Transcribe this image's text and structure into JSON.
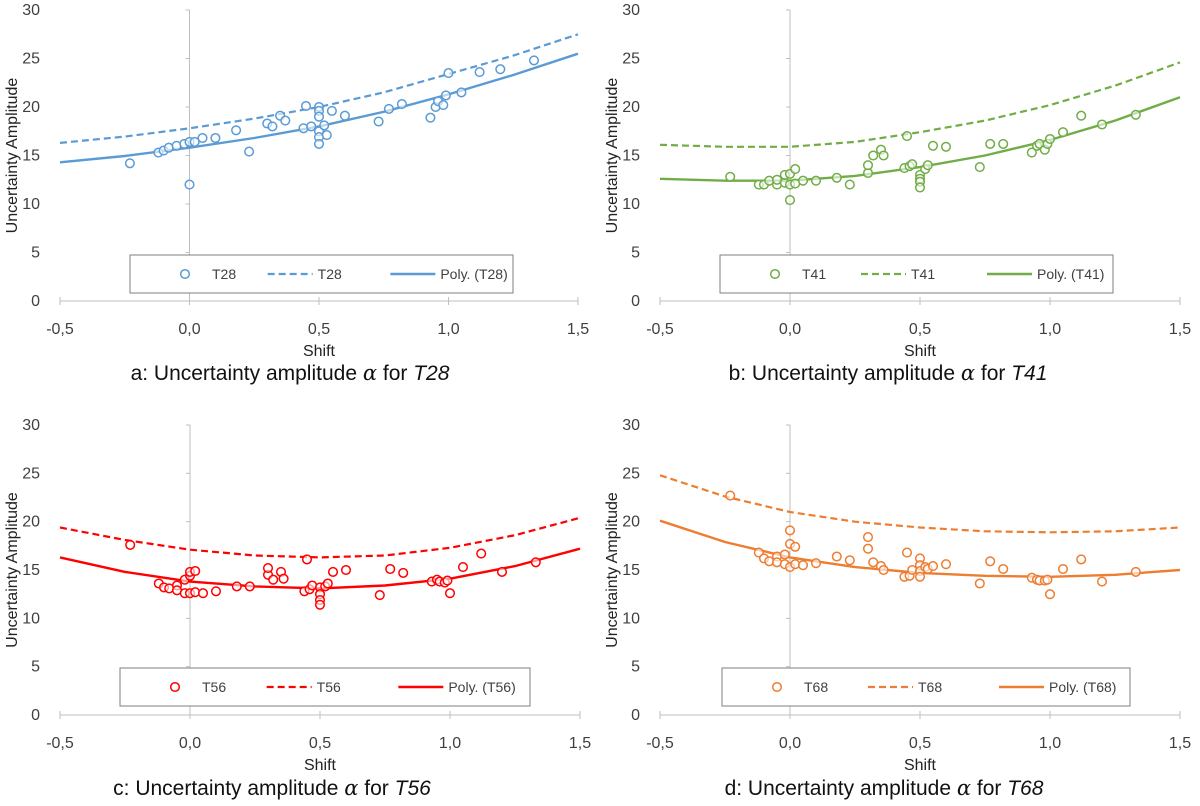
{
  "figure": {
    "colors": {
      "text": "#404040",
      "axis": "#bfbfbf",
      "legend_border": "#7f7f7f"
    }
  },
  "chart_data": [
    {
      "type": "scatter",
      "id": "a",
      "series_name": "T28",
      "color": "#5b9bd5",
      "xlabel": "Shift",
      "ylabel": "Uncertainty Amplitude",
      "xlim": [
        -0.5,
        1.5
      ],
      "ylim": [
        0,
        30
      ],
      "xticks": [
        "-0,5",
        "0,0",
        "0,5",
        "1,0",
        "1,5"
      ],
      "yticks": [
        "0",
        "5",
        "10",
        "15",
        "20",
        "25",
        "30"
      ],
      "caption": {
        "prefix": "a: Uncertainty amplitude ",
        "symbol": "α",
        "mid": " for ",
        "name": "T28"
      },
      "legend": [
        "T28",
        "T28",
        "Poly. (T28)"
      ],
      "points": [
        [
          -0.23,
          14.2
        ],
        [
          -0.12,
          15.3
        ],
        [
          -0.1,
          15.5
        ],
        [
          -0.08,
          15.8
        ],
        [
          -0.05,
          16.0
        ],
        [
          -0.02,
          16.2
        ],
        [
          0.0,
          16.4
        ],
        [
          0.0,
          12.0
        ],
        [
          0.02,
          16.4
        ],
        [
          0.05,
          16.8
        ],
        [
          0.1,
          16.8
        ],
        [
          0.18,
          17.6
        ],
        [
          0.23,
          15.4
        ],
        [
          0.3,
          18.3
        ],
        [
          0.32,
          18.0
        ],
        [
          0.35,
          19.1
        ],
        [
          0.37,
          18.6
        ],
        [
          0.44,
          17.8
        ],
        [
          0.45,
          20.1
        ],
        [
          0.47,
          18.0
        ],
        [
          0.5,
          20.0
        ],
        [
          0.5,
          19.6
        ],
        [
          0.5,
          19.0
        ],
        [
          0.5,
          17.5
        ],
        [
          0.5,
          16.9
        ],
        [
          0.5,
          16.2
        ],
        [
          0.52,
          18.1
        ],
        [
          0.53,
          17.1
        ],
        [
          0.55,
          19.6
        ],
        [
          0.6,
          19.1
        ],
        [
          0.73,
          18.5
        ],
        [
          0.77,
          19.8
        ],
        [
          0.82,
          20.3
        ],
        [
          0.93,
          18.9
        ],
        [
          0.95,
          20.0
        ],
        [
          0.96,
          20.6
        ],
        [
          0.98,
          20.2
        ],
        [
          0.99,
          21.2
        ],
        [
          1.0,
          23.5
        ],
        [
          1.05,
          21.5
        ],
        [
          1.12,
          23.6
        ],
        [
          1.2,
          23.9
        ],
        [
          1.33,
          24.8
        ]
      ],
      "dashed_curve": {
        "x": [
          -0.5,
          -0.25,
          0.0,
          0.25,
          0.5,
          0.75,
          1.0,
          1.25,
          1.5
        ],
        "y": [
          16.3,
          16.95,
          17.8,
          18.8,
          20.0,
          21.5,
          23.4,
          25.3,
          27.5
        ]
      },
      "poly_curve": {
        "x": [
          -0.5,
          -0.25,
          0.0,
          0.25,
          0.5,
          0.75,
          1.0,
          1.25,
          1.5
        ],
        "y": [
          14.3,
          14.95,
          15.8,
          16.8,
          18.0,
          19.5,
          21.3,
          23.3,
          25.5
        ]
      }
    },
    {
      "type": "scatter",
      "id": "b",
      "series_name": "T41",
      "color": "#70ad47",
      "xlabel": "Shift",
      "ylabel": "Uncertainty Amplitude",
      "xlim": [
        -0.5,
        1.5
      ],
      "ylim": [
        0,
        30
      ],
      "xticks": [
        "-0,5",
        "0,0",
        "0,5",
        "1,0",
        "1,5"
      ],
      "yticks": [
        "0",
        "5",
        "10",
        "15",
        "20",
        "25",
        "30"
      ],
      "caption": {
        "prefix": "b: Uncertainty amplitude ",
        "symbol": "α",
        "mid": " for ",
        "name": "T41"
      },
      "legend": [
        "T41",
        "T41",
        "Poly. (T41)"
      ],
      "points": [
        [
          -0.23,
          12.8
        ],
        [
          -0.12,
          12.0
        ],
        [
          -0.1,
          12.0
        ],
        [
          -0.08,
          12.4
        ],
        [
          -0.05,
          12.0
        ],
        [
          -0.05,
          12.5
        ],
        [
          -0.02,
          12.2
        ],
        [
          -0.02,
          13.0
        ],
        [
          0.0,
          12.0
        ],
        [
          0.0,
          10.4
        ],
        [
          0.0,
          13.1
        ],
        [
          0.02,
          12.1
        ],
        [
          0.02,
          13.6
        ],
        [
          0.05,
          12.4
        ],
        [
          0.1,
          12.4
        ],
        [
          0.18,
          12.7
        ],
        [
          0.23,
          12.0
        ],
        [
          0.3,
          13.2
        ],
        [
          0.3,
          14.0
        ],
        [
          0.32,
          15.0
        ],
        [
          0.35,
          15.6
        ],
        [
          0.36,
          15.0
        ],
        [
          0.44,
          13.7
        ],
        [
          0.45,
          17.0
        ],
        [
          0.46,
          13.9
        ],
        [
          0.47,
          14.1
        ],
        [
          0.5,
          13.0
        ],
        [
          0.5,
          12.6
        ],
        [
          0.5,
          12.3
        ],
        [
          0.5,
          11.7
        ],
        [
          0.52,
          13.6
        ],
        [
          0.53,
          14.0
        ],
        [
          0.55,
          16.0
        ],
        [
          0.6,
          15.9
        ],
        [
          0.73,
          13.8
        ],
        [
          0.77,
          16.2
        ],
        [
          0.82,
          16.2
        ],
        [
          0.93,
          15.3
        ],
        [
          0.95,
          16.0
        ],
        [
          0.96,
          16.2
        ],
        [
          0.98,
          15.6
        ],
        [
          0.99,
          16.2
        ],
        [
          1.0,
          16.7
        ],
        [
          1.05,
          17.4
        ],
        [
          1.12,
          19.1
        ],
        [
          1.2,
          18.2
        ],
        [
          1.33,
          19.2
        ]
      ],
      "dashed_curve": {
        "x": [
          -0.5,
          -0.25,
          0.0,
          0.25,
          0.5,
          0.75,
          1.0,
          1.25,
          1.5
        ],
        "y": [
          16.1,
          15.9,
          15.9,
          16.4,
          17.4,
          18.6,
          20.2,
          22.2,
          24.6
        ]
      },
      "poly_curve": {
        "x": [
          -0.5,
          -0.25,
          0.0,
          0.25,
          0.5,
          0.75,
          1.0,
          1.25,
          1.5
        ],
        "y": [
          12.6,
          12.4,
          12.4,
          12.9,
          13.8,
          15.0,
          16.6,
          18.6,
          21.0
        ]
      }
    },
    {
      "type": "scatter",
      "id": "c",
      "series_name": "T56",
      "color": "#ff0000",
      "xlabel": "Shift",
      "ylabel": "Uncertainty Amplitude",
      "xlim": [
        -0.5,
        1.5
      ],
      "ylim": [
        0,
        30
      ],
      "xticks": [
        "-0,5",
        "0,0",
        "0,5",
        "1,0",
        "1,5"
      ],
      "yticks": [
        "0",
        "5",
        "10",
        "15",
        "20",
        "25",
        "30"
      ],
      "caption": {
        "prefix": "c: Uncertainty amplitude ",
        "symbol": "α",
        "mid": " for ",
        "name": "T56"
      },
      "legend": [
        "T56",
        "T56",
        "Poly. (T56)"
      ],
      "points": [
        [
          -0.23,
          17.6
        ],
        [
          -0.12,
          13.6
        ],
        [
          -0.1,
          13.2
        ],
        [
          -0.08,
          13.1
        ],
        [
          -0.05,
          13.4
        ],
        [
          -0.05,
          12.9
        ],
        [
          -0.02,
          14.0
        ],
        [
          -0.02,
          12.6
        ],
        [
          0.0,
          14.4
        ],
        [
          0.0,
          12.6
        ],
        [
          0.0,
          14.8
        ],
        [
          0.02,
          12.7
        ],
        [
          0.02,
          14.9
        ],
        [
          0.05,
          12.6
        ],
        [
          0.1,
          12.8
        ],
        [
          0.18,
          13.3
        ],
        [
          0.23,
          13.3
        ],
        [
          0.3,
          14.5
        ],
        [
          0.3,
          15.2
        ],
        [
          0.32,
          14.0
        ],
        [
          0.35,
          14.8
        ],
        [
          0.36,
          14.1
        ],
        [
          0.44,
          12.8
        ],
        [
          0.45,
          16.1
        ],
        [
          0.46,
          13.0
        ],
        [
          0.47,
          13.4
        ],
        [
          0.5,
          13.2
        ],
        [
          0.5,
          12.5
        ],
        [
          0.5,
          11.9
        ],
        [
          0.5,
          11.4
        ],
        [
          0.52,
          13.3
        ],
        [
          0.53,
          13.6
        ],
        [
          0.55,
          14.8
        ],
        [
          0.6,
          15.0
        ],
        [
          0.73,
          12.4
        ],
        [
          0.77,
          15.1
        ],
        [
          0.82,
          14.7
        ],
        [
          0.93,
          13.8
        ],
        [
          0.95,
          14.0
        ],
        [
          0.96,
          13.8
        ],
        [
          0.98,
          13.7
        ],
        [
          0.99,
          13.9
        ],
        [
          1.0,
          12.6
        ],
        [
          1.05,
          15.3
        ],
        [
          1.12,
          16.7
        ],
        [
          1.2,
          14.8
        ],
        [
          1.33,
          15.8
        ]
      ],
      "dashed_curve": {
        "x": [
          -0.5,
          -0.25,
          0.0,
          0.25,
          0.5,
          0.75,
          1.0,
          1.25,
          1.5
        ],
        "y": [
          19.4,
          18.1,
          17.1,
          16.5,
          16.3,
          16.5,
          17.3,
          18.6,
          20.4
        ]
      },
      "poly_curve": {
        "x": [
          -0.5,
          -0.25,
          0.0,
          0.25,
          0.5,
          0.75,
          1.0,
          1.25,
          1.5
        ],
        "y": [
          16.3,
          14.8,
          13.8,
          13.3,
          13.1,
          13.4,
          14.1,
          15.4,
          17.2
        ]
      }
    },
    {
      "type": "scatter",
      "id": "d",
      "series_name": "T68",
      "color": "#ed7d31",
      "xlabel": "Shift",
      "ylabel": "Uncertainty Amplitude",
      "xlim": [
        -0.5,
        1.5
      ],
      "ylim": [
        0,
        30
      ],
      "xticks": [
        "-0,5",
        "0,0",
        "0,5",
        "1,0",
        "1,5"
      ],
      "yticks": [
        "0",
        "5",
        "10",
        "15",
        "20",
        "25",
        "30"
      ],
      "caption": {
        "prefix": "d: Uncertainty amplitude ",
        "symbol": "α",
        "mid": " for ",
        "name": "T68"
      },
      "legend": [
        "T68",
        "T68",
        "Poly. (T68)"
      ],
      "points": [
        [
          -0.23,
          22.7
        ],
        [
          -0.12,
          16.8
        ],
        [
          -0.1,
          16.2
        ],
        [
          -0.08,
          15.9
        ],
        [
          -0.05,
          16.4
        ],
        [
          -0.05,
          15.8
        ],
        [
          -0.02,
          16.6
        ],
        [
          -0.02,
          15.6
        ],
        [
          0.0,
          19.1
        ],
        [
          0.0,
          17.7
        ],
        [
          0.0,
          15.3
        ],
        [
          0.02,
          17.4
        ],
        [
          0.02,
          15.6
        ],
        [
          0.05,
          15.5
        ],
        [
          0.1,
          15.7
        ],
        [
          0.18,
          16.4
        ],
        [
          0.23,
          16.0
        ],
        [
          0.3,
          17.2
        ],
        [
          0.3,
          18.4
        ],
        [
          0.32,
          15.8
        ],
        [
          0.35,
          15.4
        ],
        [
          0.36,
          15.0
        ],
        [
          0.44,
          14.3
        ],
        [
          0.45,
          16.8
        ],
        [
          0.46,
          14.4
        ],
        [
          0.47,
          15.0
        ],
        [
          0.5,
          16.2
        ],
        [
          0.5,
          15.5
        ],
        [
          0.5,
          14.9
        ],
        [
          0.5,
          14.3
        ],
        [
          0.52,
          15.3
        ],
        [
          0.53,
          15.1
        ],
        [
          0.55,
          15.4
        ],
        [
          0.6,
          15.6
        ],
        [
          0.73,
          13.6
        ],
        [
          0.77,
          15.9
        ],
        [
          0.82,
          15.1
        ],
        [
          0.93,
          14.2
        ],
        [
          0.95,
          14.0
        ],
        [
          0.96,
          13.9
        ],
        [
          0.98,
          13.9
        ],
        [
          0.99,
          14.0
        ],
        [
          1.0,
          12.5
        ],
        [
          1.05,
          15.1
        ],
        [
          1.12,
          16.1
        ],
        [
          1.2,
          13.8
        ],
        [
          1.33,
          14.8
        ]
      ],
      "dashed_curve": {
        "x": [
          -0.5,
          -0.25,
          0.0,
          0.25,
          0.5,
          0.75,
          1.0,
          1.25,
          1.5
        ],
        "y": [
          24.8,
          22.6,
          21.0,
          20.0,
          19.4,
          19.0,
          18.9,
          19.0,
          19.4
        ]
      },
      "poly_curve": {
        "x": [
          -0.5,
          -0.25,
          0.0,
          0.25,
          0.5,
          0.75,
          1.0,
          1.25,
          1.5
        ],
        "y": [
          20.1,
          17.9,
          16.3,
          15.3,
          14.7,
          14.4,
          14.3,
          14.5,
          15.0
        ]
      }
    }
  ]
}
